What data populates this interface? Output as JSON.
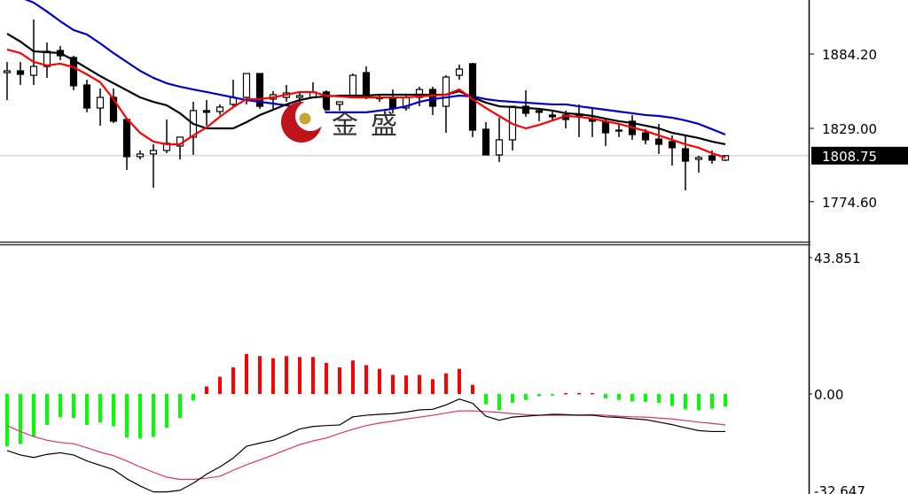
{
  "watermark": {
    "logo_text": "金盛",
    "colors": {
      "crescent": "#c0141c",
      "coin": "#c8a530"
    }
  },
  "chart_data": [
    {
      "type": "candlestick",
      "panel": "price",
      "yticks": [
        "1884.20",
        "1829.00",
        "1774.60"
      ],
      "ytick_values": [
        1884.2,
        1829.0,
        1774.6
      ],
      "current_price": {
        "value": 1808.75,
        "label": "1808.75"
      },
      "grid": false,
      "colors": {
        "bull_body": "#ffffff",
        "bear_body": "#000000",
        "ma_fast": "#ff0000",
        "ma_mid": "#000000",
        "ma_slow": "#0000c8",
        "current_line": "#c0c0c0"
      },
      "candles": [
        [
          1870.4,
          1878.3,
          1850.0,
          1871.7
        ],
        [
          1871.7,
          1878.3,
          1861.2,
          1869.1
        ],
        [
          1868.4,
          1909.8,
          1861.2,
          1875.0
        ],
        [
          1875.0,
          1892.7,
          1866.5,
          1886.2
        ],
        [
          1886.8,
          1890.1,
          1879.6,
          1882.9
        ],
        [
          1881.6,
          1882.9,
          1857.3,
          1860.6
        ],
        [
          1861.2,
          1865.1,
          1840.9,
          1844.1
        ],
        [
          1844.1,
          1858.6,
          1831.0,
          1852.0
        ],
        [
          1852.0,
          1858.6,
          1833.0,
          1834.3
        ],
        [
          1835.6,
          1836.9,
          1798.1,
          1808.0
        ],
        [
          1808.0,
          1812.6,
          1806.0,
          1810.0
        ],
        [
          1810.0,
          1817.2,
          1785.0,
          1812.6
        ],
        [
          1812.6,
          1835.6,
          1810.6,
          1817.9
        ],
        [
          1815.9,
          1822.5,
          1806.0,
          1822.5
        ],
        [
          1822.5,
          1848.7,
          1809.3,
          1842.2
        ],
        [
          1842.2,
          1850.0,
          1831.0,
          1840.9
        ],
        [
          1841.5,
          1846.8,
          1839.0,
          1844.8
        ],
        [
          1846.8,
          1865.1,
          1845.4,
          1852.0
        ],
        [
          1852.0,
          1869.7,
          1846.8,
          1869.7
        ],
        [
          1869.7,
          1869.7,
          1843.5,
          1845.4
        ],
        [
          1850.7,
          1856.6,
          1842.2,
          1854.0
        ],
        [
          1852.0,
          1861.2,
          1848.7,
          1855.3
        ],
        [
          1852.0,
          1855.3,
          1846.8,
          1853.3
        ],
        [
          1852.0,
          1863.2,
          1852.0,
          1856.0
        ],
        [
          1856.0,
          1857.3,
          1842.2,
          1842.8
        ],
        [
          1846.8,
          1848.7,
          1842.2,
          1848.7
        ],
        [
          1852.0,
          1869.7,
          1852.0,
          1868.4
        ],
        [
          1870.4,
          1875.0,
          1850.7,
          1852.0
        ],
        [
          1852.0,
          1853.3,
          1848.7,
          1851.0
        ],
        [
          1852.0,
          1857.9,
          1840.2,
          1844.1
        ],
        [
          1844.1,
          1854.6,
          1842.2,
          1852.0
        ],
        [
          1852.0,
          1859.9,
          1845.4,
          1857.9
        ],
        [
          1857.9,
          1859.9,
          1838.9,
          1845.4
        ],
        [
          1845.4,
          1868.4,
          1825.7,
          1867.1
        ],
        [
          1868.4,
          1876.3,
          1865.1,
          1873.0
        ],
        [
          1877.0,
          1877.6,
          1822.5,
          1827.7
        ],
        [
          1828.4,
          1833.6,
          1809.3,
          1809.3
        ],
        [
          1809.3,
          1836.9,
          1804.0,
          1820.5
        ],
        [
          1820.5,
          1845.4,
          1812.6,
          1845.4
        ],
        [
          1845.4,
          1857.3,
          1837.6,
          1840.2
        ],
        [
          1842.2,
          1844.1,
          1834.3,
          1840.9
        ],
        [
          1838.9,
          1842.2,
          1834.9,
          1837.6
        ],
        [
          1838.9,
          1842.2,
          1829.0,
          1835.6
        ],
        [
          1838.9,
          1846.8,
          1822.5,
          1838.3
        ],
        [
          1836.2,
          1844.1,
          1822.5,
          1834.3
        ],
        [
          1833.6,
          1836.9,
          1815.9,
          1825.7
        ],
        [
          1827.7,
          1832.3,
          1822.5,
          1827.0
        ],
        [
          1834.3,
          1838.9,
          1820.5,
          1824.4
        ],
        [
          1825.7,
          1828.4,
          1817.2,
          1820.5
        ],
        [
          1821.1,
          1832.3,
          1810.0,
          1817.2
        ],
        [
          1819.2,
          1823.8,
          1801.4,
          1814.6
        ],
        [
          1813.9,
          1823.8,
          1783.0,
          1804.7
        ],
        [
          1806.0,
          1808.7,
          1796.2,
          1807.3
        ],
        [
          1808.7,
          1812.6,
          1802.8,
          1805.4
        ],
        [
          1805.4,
          1809.3,
          1804.7,
          1808.75
        ]
      ],
      "ma_fast": [
        1887.5,
        1884.9,
        1878.3,
        1875.7,
        1877.0,
        1874.4,
        1869.1,
        1863.2,
        1850.7,
        1836.2,
        1825.7,
        1819.2,
        1817.2,
        1817.2,
        1823.8,
        1829.7,
        1837.6,
        1844.8,
        1850.7,
        1850.7,
        1852.0,
        1854.0,
        1856.0,
        1856.0,
        1853.3,
        1852.7,
        1852.0,
        1852.0,
        1852.0,
        1852.0,
        1852.0,
        1852.7,
        1853.3,
        1854.0,
        1857.9,
        1850.7,
        1844.1,
        1838.2,
        1832.3,
        1829.0,
        1831.6,
        1834.9,
        1838.2,
        1837.6,
        1836.2,
        1834.3,
        1832.3,
        1829.7,
        1827.1,
        1823.8,
        1820.5,
        1817.2,
        1814.6,
        1810.6,
        1807.3
      ],
      "ma_mid": [
        1899.3,
        1893.4,
        1886.2,
        1885.5,
        1884.9,
        1879.6,
        1873.7,
        1867.8,
        1862.5,
        1857.3,
        1852.0,
        1848.7,
        1846.1,
        1840.2,
        1832.3,
        1829.0,
        1829.0,
        1829.0,
        1833.6,
        1838.9,
        1842.8,
        1846.8,
        1850.0,
        1852.0,
        1852.7,
        1853.3,
        1853.3,
        1853.3,
        1854.0,
        1854.0,
        1854.0,
        1854.0,
        1854.0,
        1854.0,
        1856.6,
        1852.0,
        1848.1,
        1845.4,
        1844.8,
        1844.1,
        1843.5,
        1842.2,
        1840.2,
        1839.5,
        1838.2,
        1836.2,
        1834.3,
        1833.0,
        1831.0,
        1829.0,
        1825.7,
        1823.8,
        1821.8,
        1819.2,
        1817.2
      ],
      "ma_slow": [
        1930.2,
        1926.3,
        1922.3,
        1915.7,
        1908.5,
        1902.0,
        1898.7,
        1892.1,
        1884.9,
        1878.3,
        1871.7,
        1866.5,
        1862.5,
        1859.9,
        1857.9,
        1856.0,
        1854.0,
        1852.0,
        1850.0,
        1848.7,
        1847.4,
        1846.1,
        1844.8,
        1843.5,
        1840.9,
        1840.9,
        1840.9,
        1840.9,
        1842.2,
        1843.5,
        1845.4,
        1848.7,
        1850.7,
        1852.0,
        1853.3,
        1852.7,
        1850.7,
        1849.4,
        1848.7,
        1848.1,
        1847.4,
        1846.8,
        1846.8,
        1845.4,
        1844.1,
        1842.8,
        1841.5,
        1840.2,
        1838.9,
        1838.2,
        1836.9,
        1834.9,
        1832.3,
        1828.4,
        1824.4
      ]
    },
    {
      "type": "bar+line",
      "panel": "macd",
      "yticks": [
        "43.851",
        "0.00",
        "-32.647"
      ],
      "ytick_values": [
        43.851,
        0.0,
        -32.647
      ],
      "ylim": [
        -32.647,
        43.851
      ],
      "grid": false,
      "colors": {
        "positive": "#ff0000",
        "negative": "#00ff00",
        "macd_line": "#000000",
        "signal_line": "#e0306a"
      },
      "histogram": [
        -16.7,
        -16.0,
        -13.7,
        -9.9,
        -7.4,
        -7.7,
        -9.9,
        -9.1,
        -10.3,
        -13.9,
        -14.2,
        -13.7,
        -10.8,
        -7.7,
        -2.1,
        2.4,
        5.5,
        8.5,
        12.8,
        12.1,
        11.4,
        12.1,
        11.8,
        11.8,
        9.9,
        8.5,
        10.7,
        9.2,
        8.0,
        6.1,
        5.9,
        6.1,
        4.7,
        6.6,
        8.0,
        2.9,
        -3.3,
        -5.2,
        -2.8,
        -1.9,
        -0.7,
        -0.5,
        0.3,
        0.3,
        0.3,
        -1.4,
        -1.9,
        -2.4,
        -2.5,
        -2.8,
        -3.8,
        -4.9,
        -5.2,
        -4.7,
        -4.0
      ],
      "macd": [
        -18.1,
        -19.5,
        -20.3,
        -19.3,
        -18.8,
        -19.5,
        -21.4,
        -22.8,
        -24.2,
        -27.1,
        -29.4,
        -31.3,
        -31.3,
        -30.8,
        -28.5,
        -25.6,
        -23.3,
        -20.5,
        -16.7,
        -15.7,
        -14.8,
        -13.1,
        -11.2,
        -10.4,
        -10.1,
        -9.9,
        -7.3,
        -6.8,
        -6.5,
        -6.3,
        -5.8,
        -5.1,
        -4.9,
        -3.5,
        -1.6,
        -3.0,
        -7.1,
        -8.4,
        -7.4,
        -7.1,
        -6.8,
        -6.5,
        -6.6,
        -6.8,
        -6.8,
        -7.3,
        -7.5,
        -7.9,
        -8.2,
        -9.0,
        -9.8,
        -10.8,
        -11.7,
        -12.0,
        -12.0
      ],
      "signal": [
        -10.1,
        -12.0,
        -13.6,
        -14.8,
        -15.5,
        -15.9,
        -17.2,
        -18.6,
        -19.7,
        -21.4,
        -23.3,
        -25.0,
        -26.6,
        -27.3,
        -27.3,
        -26.9,
        -26.3,
        -24.4,
        -22.6,
        -21.1,
        -19.5,
        -17.8,
        -16.2,
        -15.0,
        -14.1,
        -12.6,
        -11.3,
        -10.1,
        -9.3,
        -8.7,
        -8.0,
        -7.4,
        -6.8,
        -6.1,
        -5.4,
        -5.4,
        -5.6,
        -5.9,
        -6.3,
        -6.6,
        -6.8,
        -6.8,
        -6.8,
        -6.8,
        -6.6,
        -6.8,
        -7.1,
        -7.3,
        -7.4,
        -7.7,
        -8.0,
        -8.5,
        -9.0,
        -9.4,
        -9.9
      ]
    }
  ]
}
